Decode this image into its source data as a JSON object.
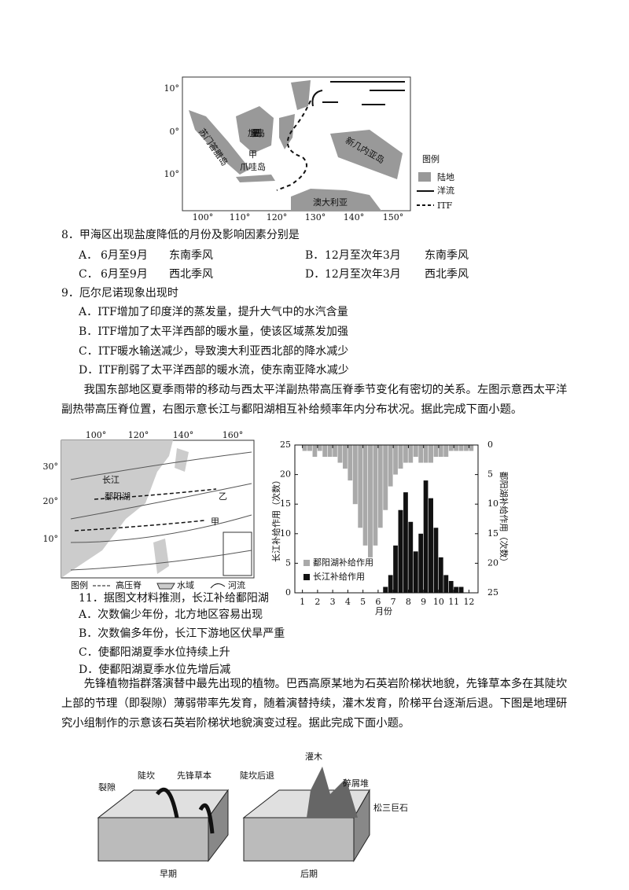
{
  "figure1": {
    "lat_labels": [
      "10°",
      "0°",
      "10°"
    ],
    "lon_labels": [
      "100°",
      "110°",
      "120°",
      "130°",
      "140°",
      "150°"
    ],
    "places": [
      "加里曼丹岛",
      "苏门答腊岛",
      "甲",
      "爪哇岛",
      "新几内亚岛",
      "澳大利亚"
    ],
    "legend": {
      "title": "图例",
      "items": [
        "陆地",
        "洋流",
        "ITF"
      ]
    }
  },
  "q8": {
    "stem": "8．甲海区出现盐度降低的月份及影响因素分别是",
    "options": [
      {
        "label": "A．",
        "period": "6月至9月",
        "factor": "东南季风"
      },
      {
        "label": "B．",
        "period": "12月至次年3月",
        "factor": "东南季风"
      },
      {
        "label": "C．",
        "period": "6月至9月",
        "factor": "西北季风"
      },
      {
        "label": "D．",
        "period": "12月至次年3月",
        "factor": "西北季风"
      }
    ]
  },
  "q9": {
    "stem": "9．厄尔尼诺现象出现时",
    "options": [
      "A．ITF增加了印度洋的蒸发量，提升大气中的水汽含量",
      "B．ITF增加了太平洋西部的暖水量，使该区域蒸发加强",
      "C．ITF暖水输送减少，导致澳大利亚西北部的降水减少",
      "D．ITF削弱了太平洋西部的暖水流，使东南亚降水减少"
    ]
  },
  "passage1": "我国东部地区夏季雨带的移动与西太平洋副热带高压脊季节变化有密切的关系。左图示意西太平洋副热带高压脊位置，右图示意长江与鄱阳湖相互补给频率年内分布状况。据此完成下面小题。",
  "figure2": {
    "lon_labels": [
      "100°",
      "120°",
      "140°",
      "160°"
    ],
    "lat_labels": [
      "30°",
      "20°",
      "10°"
    ],
    "places": [
      "长江",
      "鄱阳湖",
      "乙",
      "甲"
    ],
    "legend": {
      "title": "图例",
      "items": [
        "高压脊",
        "水域",
        "河流"
      ]
    }
  },
  "chart": {
    "type": "histogram",
    "x_label": "月份",
    "y_label": "长江补给作用（次数）",
    "y2_label": "鄱阳湖补给作用（次数）",
    "xlim": [
      0.5,
      12.6
    ],
    "xticks": [
      1,
      2,
      3,
      4,
      5,
      6,
      7,
      8,
      9,
      10,
      11,
      12
    ],
    "ylim": [
      0,
      25
    ],
    "yticks": [
      0,
      5,
      10,
      15,
      20,
      25
    ],
    "y2lim": [
      0,
      25
    ],
    "y2ticks": [
      0,
      5,
      10,
      15,
      20,
      25
    ],
    "y2_inverted": true,
    "x": [
      1,
      1.33,
      1.67,
      2,
      2.33,
      2.67,
      3,
      3.33,
      3.67,
      4,
      4.33,
      4.67,
      5,
      5.33,
      5.67,
      6,
      6.33,
      6.67,
      7,
      7.33,
      7.67,
      8,
      8.33,
      8.67,
      9,
      9.33,
      9.67,
      10,
      10.33,
      10.67,
      11,
      11.33,
      11.67,
      12,
      12.33,
      12.67
    ],
    "series": [
      {
        "name": "鄱阳湖补给作用",
        "color": "#a9a9a9",
        "axis": "y2",
        "values": [
          1,
          1,
          2,
          1,
          2,
          2,
          2,
          3,
          4,
          6,
          10,
          14,
          17,
          19,
          17,
          14,
          11,
          7,
          5,
          4,
          3,
          3,
          2,
          3,
          3,
          3,
          2,
          2,
          2,
          1,
          1,
          1,
          1,
          1,
          0,
          0
        ]
      },
      {
        "name": "长江补给作用",
        "color": "#111111",
        "values": [
          0,
          0,
          0,
          0,
          0,
          0,
          0,
          0,
          0,
          0,
          0,
          0,
          0,
          0,
          0,
          0,
          1,
          3,
          8,
          14,
          17,
          12,
          7,
          10,
          19,
          16,
          11,
          6,
          3,
          2,
          1,
          1,
          0,
          0,
          0,
          0
        ]
      }
    ]
  },
  "q11": {
    "stem": "11．据图文材料推测，长江补给鄱阳湖",
    "options": [
      "A．次数偏少年份，北方地区容易出现",
      "B．次数偏多年份，长江下游地区伏旱严重",
      "C．使鄱阳湖夏季水位持续上升",
      "D．使鄱阳湖夏季水位先增后减"
    ]
  },
  "passage2": "先锋植物指群落演替中最先出现的植物。巴西高原某地为石英岩阶梯状地貌，先锋草本多在其陡坎上部的节理（即裂隙）薄弱带率先发育，随着演替持续，灌木发育，阶梯平台逐渐后退。下图是地理研究小组制作的示意该石英岩阶梯状地貌演变过程。据此完成下面小题。",
  "figure3": {
    "labels": [
      "裂隙",
      "陡坎",
      "先锋草本",
      "陡坎后退",
      "灌木",
      "碎屑堆",
      "松三巨石"
    ],
    "captions": [
      "早期",
      "后期"
    ]
  }
}
